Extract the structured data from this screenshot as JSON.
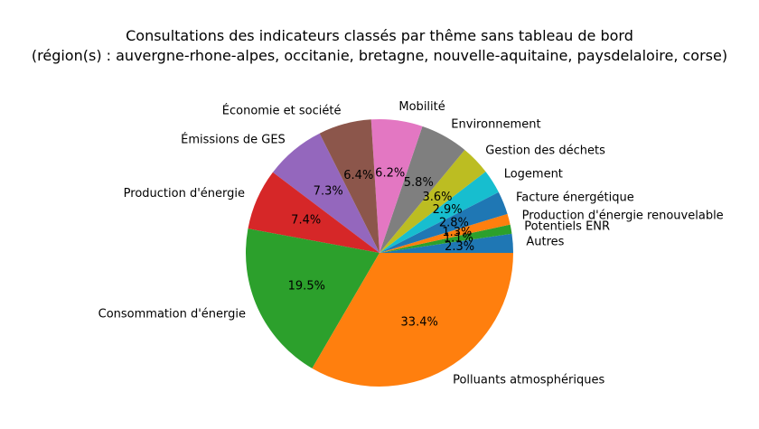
{
  "chart_data": {
    "type": "pie",
    "title": "Consultations des indicateurs classés par thême sans tableau de bord",
    "subtitle": "(région(s) : auvergne-rhone-alpes, occitanie, bretagne, nouvelle-aquitaine, paysdelaloire, corse)",
    "categories": [
      "Autres",
      "Potentiels ENR",
      "Production d'énergie renouvelable",
      "Facture énergétique",
      "Logement",
      "Gestion des déchets",
      "Environnement",
      "Mobilité",
      "Économie et société",
      "Émissions de GES",
      "Production d'énergie",
      "Consommation d'énergie",
      "Polluants atmosphériques"
    ],
    "values": [
      2.3,
      1.1,
      1.3,
      2.8,
      2.9,
      3.6,
      5.8,
      6.2,
      6.4,
      7.3,
      7.4,
      19.5,
      33.4
    ],
    "pct_labels": [
      "2.3%",
      "1.1%",
      "1.3%",
      "2.8%",
      "2.9%",
      "3.6%",
      "5.8%",
      "6.2%",
      "6.4%",
      "7.3%",
      "7.4%",
      "19.5%",
      "33.4%"
    ],
    "colors": [
      "#1f77b4",
      "#2ca02c",
      "#ff7f0e",
      "#1f77b4",
      "#17becf",
      "#bcbd22",
      "#7f7f7f",
      "#e377c2",
      "#8c564b",
      "#9467bd",
      "#d62728",
      "#2ca02c",
      "#ff7f0e"
    ],
    "start_angle_deg": 0,
    "direction": "counterclockwise",
    "legend": "none"
  }
}
